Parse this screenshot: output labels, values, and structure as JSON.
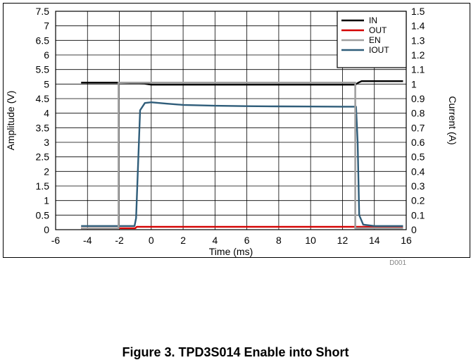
{
  "caption": "Figure 3. TPD3S014 Enable into Short",
  "chart_data": {
    "type": "line",
    "xlabel": "Time (ms)",
    "ylabel": "Amplitude (V)",
    "y2label": "Current (A)",
    "xlim": [
      -6,
      16
    ],
    "ylim": [
      0,
      7.5
    ],
    "y2lim": [
      0,
      1.5
    ],
    "xticks": [
      "-6",
      "-4",
      "-2",
      "0",
      "2",
      "4",
      "6",
      "8",
      "10",
      "12",
      "14",
      "16"
    ],
    "yticks": [
      "0",
      "0.5",
      "1",
      "1.5",
      "2",
      "2.5",
      "3",
      "3.5",
      "4",
      "4.5",
      "5",
      "5.5",
      "6",
      "6.5",
      "7",
      "7.5"
    ],
    "y2ticks": [
      "0",
      "0.1",
      "0.2",
      "0.3",
      "0.4",
      "0.5",
      "0.6",
      "0.7",
      "0.8",
      "0.9",
      "1",
      "1.1",
      "1.2",
      "1.3",
      "1.4",
      "1.5"
    ],
    "grid": true,
    "legend_position": "top-right",
    "tag": "D001",
    "series": [
      {
        "name": "IN",
        "color": "#000000",
        "axis": "left",
        "x": [
          -4.4,
          -2.0,
          -1.5,
          -1.0,
          -0.5,
          0.0,
          1.0,
          2.0,
          4.0,
          6.0,
          8.0,
          10.0,
          12.0,
          12.8,
          13.0,
          13.2,
          14.0,
          15.0,
          15.8
        ],
        "y": [
          5.05,
          5.05,
          5.04,
          5.03,
          5.02,
          4.98,
          4.98,
          4.98,
          4.98,
          4.98,
          4.98,
          4.98,
          4.98,
          4.98,
          5.05,
          5.1,
          5.1,
          5.1,
          5.1
        ]
      },
      {
        "name": "OUT",
        "color": "#d40000",
        "axis": "left",
        "x": [
          -4.4,
          -1.0,
          -0.9,
          0.0,
          4.0,
          8.0,
          12.0,
          12.9,
          15.8
        ],
        "y": [
          0.05,
          0.05,
          0.1,
          0.1,
          0.1,
          0.1,
          0.1,
          0.1,
          0.1
        ]
      },
      {
        "name": "EN",
        "color": "#a0a0a0",
        "axis": "left",
        "x": [
          -4.4,
          -2.05,
          -2.05,
          12.8,
          12.8,
          15.8
        ],
        "y": [
          0.05,
          0.05,
          5.05,
          5.05,
          0.05,
          0.05
        ]
      },
      {
        "name": "IOUT",
        "color": "#2f5d7a",
        "axis": "right",
        "x": [
          -4.4,
          -1.05,
          -0.95,
          -0.7,
          -0.4,
          0.0,
          1.0,
          2.0,
          4.0,
          6.0,
          8.0,
          10.0,
          12.0,
          12.85,
          12.95,
          13.05,
          13.3,
          14.0,
          15.0,
          15.8
        ],
        "y": [
          0.025,
          0.025,
          0.08,
          0.82,
          0.87,
          0.875,
          0.865,
          0.857,
          0.851,
          0.848,
          0.847,
          0.846,
          0.845,
          0.845,
          0.6,
          0.1,
          0.035,
          0.025,
          0.025,
          0.025
        ]
      }
    ]
  }
}
